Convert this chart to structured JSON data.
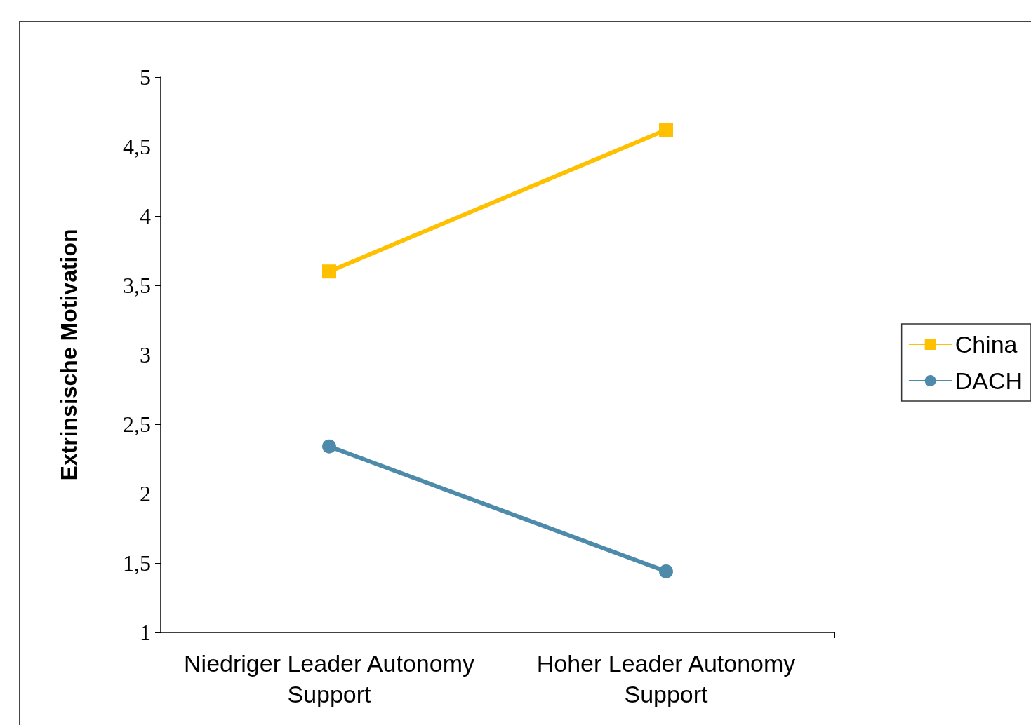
{
  "chart_data": {
    "type": "line",
    "ylabel": "Extrinsische Motivation",
    "categories": [
      "Niedriger Leader Autonomy Support",
      "Hoher Leader Autonomy Support"
    ],
    "series": [
      {
        "name": "China",
        "color": "#ffc000",
        "marker": "square",
        "values": [
          3.6,
          4.62
        ]
      },
      {
        "name": "DACH",
        "color": "#4e8aaa",
        "marker": "circle",
        "values": [
          2.34,
          1.44
        ]
      }
    ],
    "ylim": [
      1,
      5
    ],
    "yticks": [
      1,
      {
        "value": 1.5,
        "label": "1,5"
      },
      2,
      {
        "value": 2.5,
        "label": "2,5"
      },
      3,
      {
        "value": 3.5,
        "label": "3,5"
      },
      4,
      {
        "value": 4.5,
        "label": "4,5"
      },
      5
    ],
    "grid": false,
    "legend": "right"
  }
}
